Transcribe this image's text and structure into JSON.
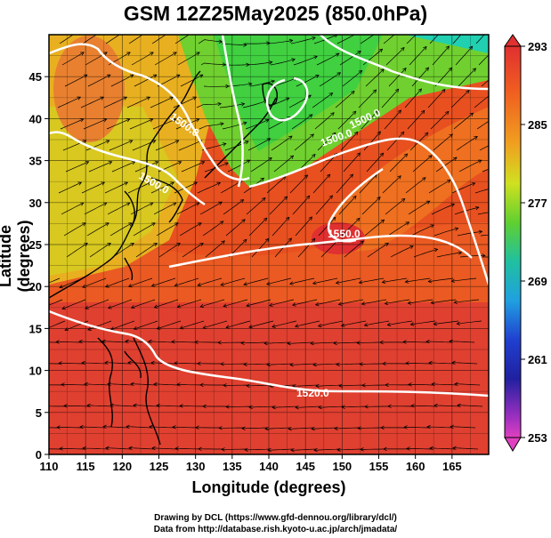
{
  "title": "GSM 12Z25May2025 (850.0hPa)",
  "axes": {
    "xlabel": "Longitude (degrees)",
    "ylabel": "Latitude  (degrees)",
    "xticks": [
      "110",
      "115",
      "120",
      "125",
      "130",
      "135",
      "140",
      "145",
      "150",
      "155",
      "160",
      "165"
    ],
    "yticks": [
      "0",
      "5",
      "10",
      "15",
      "20",
      "25",
      "30",
      "35",
      "40",
      "45"
    ],
    "xlim": [
      110,
      170
    ],
    "ylim": [
      0,
      50
    ]
  },
  "colorbar": {
    "ticks": [
      "293",
      "285",
      "277",
      "269",
      "261",
      "253"
    ],
    "range": [
      253,
      293
    ],
    "colors": [
      "#e040c0",
      "#8030c0",
      "#2030c0",
      "#2080e0",
      "#20c0e0",
      "#20d0a0",
      "#40d040",
      "#90d020",
      "#d0e020",
      "#f0c020",
      "#f08020",
      "#e85020",
      "#e03030"
    ]
  },
  "contour_labels": [
    "1500.0",
    "1520.0",
    "1500.0",
    "1500.0",
    "1500.0",
    "1550.0"
  ],
  "credits": {
    "line1": "Drawing by DCL (https://www.gfd-dennou.org/library/dcl/)",
    "line2": "Data from http://database.rish.kyoto-u.ac.jp/arch/jmadata/"
  }
}
